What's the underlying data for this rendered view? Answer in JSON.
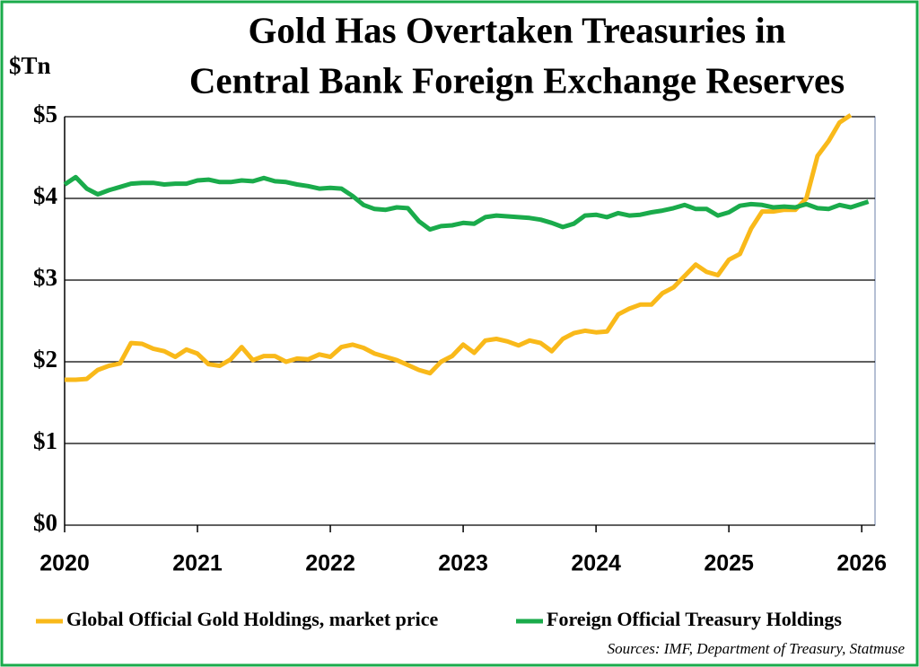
{
  "chart_data": {
    "type": "line",
    "title": [
      "Gold Has Overtaken Treasuries in",
      "Central Bank Foreign Exchange Reserves"
    ],
    "y_label": "$Tn",
    "source": "Sources: IMF, Department of Treasury, Statmuse",
    "x": [
      2020,
      2020.083,
      2020.167,
      2020.25,
      2020.333,
      2020.417,
      2020.5,
      2020.583,
      2020.667,
      2020.75,
      2020.833,
      2020.917,
      2021,
      2021.083,
      2021.167,
      2021.25,
      2021.333,
      2021.417,
      2021.5,
      2021.583,
      2021.667,
      2021.75,
      2021.833,
      2021.917,
      2022,
      2022.083,
      2022.167,
      2022.25,
      2022.333,
      2022.417,
      2022.5,
      2022.583,
      2022.667,
      2022.75,
      2022.833,
      2022.917,
      2023,
      2023.083,
      2023.167,
      2023.25,
      2023.333,
      2023.417,
      2023.5,
      2023.583,
      2023.667,
      2023.75,
      2023.833,
      2023.917,
      2024,
      2024.083,
      2024.167,
      2024.25,
      2024.333,
      2024.417,
      2024.5,
      2024.583,
      2024.667,
      2024.75,
      2024.833,
      2024.917,
      2025,
      2025.083,
      2025.167,
      2025.25,
      2025.333,
      2025.417,
      2025.5,
      2025.583,
      2025.667,
      2025.75,
      2025.833,
      2025.917,
      2026.05
    ],
    "series": [
      {
        "name": "Global Official Gold Holdings, market price",
        "color": "#f9b91a",
        "values": [
          1.78,
          1.78,
          1.79,
          1.9,
          1.95,
          1.98,
          2.23,
          2.22,
          2.16,
          2.13,
          2.06,
          2.15,
          2.1,
          1.97,
          1.95,
          2.03,
          2.18,
          2.02,
          2.07,
          2.07,
          2.0,
          2.04,
          2.03,
          2.09,
          2.06,
          2.18,
          2.21,
          2.17,
          2.1,
          2.06,
          2.02,
          1.96,
          1.9,
          1.86,
          2.0,
          2.07,
          2.21,
          2.11,
          2.26,
          2.28,
          2.25,
          2.2,
          2.26,
          2.23,
          2.13,
          2.28,
          2.35,
          2.38,
          2.36,
          2.37,
          2.58,
          2.65,
          2.7,
          2.7,
          2.84,
          2.91,
          3.05,
          3.19,
          3.1,
          3.06,
          3.25,
          3.32,
          3.63,
          3.84,
          3.84,
          3.86,
          3.86,
          4.0,
          4.52,
          4.7,
          4.93,
          5.02,
          null
        ]
      },
      {
        "name": "Foreign Official Treasury Holdings",
        "color": "#1aab4b",
        "values": [
          4.17,
          4.26,
          4.12,
          4.05,
          4.1,
          4.14,
          4.18,
          4.19,
          4.19,
          4.17,
          4.18,
          4.18,
          4.22,
          4.23,
          4.2,
          4.2,
          4.22,
          4.21,
          4.25,
          4.21,
          4.2,
          4.17,
          4.15,
          4.12,
          4.13,
          4.12,
          4.03,
          3.92,
          3.87,
          3.86,
          3.89,
          3.88,
          3.72,
          3.62,
          3.66,
          3.67,
          3.7,
          3.69,
          3.77,
          3.79,
          3.78,
          3.77,
          3.76,
          3.74,
          3.7,
          3.65,
          3.69,
          3.79,
          3.8,
          3.77,
          3.82,
          3.79,
          3.8,
          3.83,
          3.85,
          3.88,
          3.92,
          3.87,
          3.87,
          3.79,
          3.83,
          3.91,
          3.93,
          3.92,
          3.89,
          3.9,
          3.89,
          3.93,
          3.88,
          3.87,
          3.92,
          3.89,
          3.96
        ]
      }
    ],
    "xlim": [
      2020,
      2026.1
    ],
    "xticks": [
      2020,
      2021,
      2022,
      2023,
      2024,
      2025,
      2026
    ],
    "ylim": [
      0,
      5
    ],
    "yticks": [
      {
        "value": 0,
        "label": "$0"
      },
      {
        "value": 1,
        "label": "$1"
      },
      {
        "value": 2,
        "label": "$2"
      },
      {
        "value": 3,
        "label": "$3"
      },
      {
        "value": 4,
        "label": "$4"
      },
      {
        "value": 5,
        "label": "$5"
      }
    ],
    "grid": true,
    "legend": "bottom"
  }
}
